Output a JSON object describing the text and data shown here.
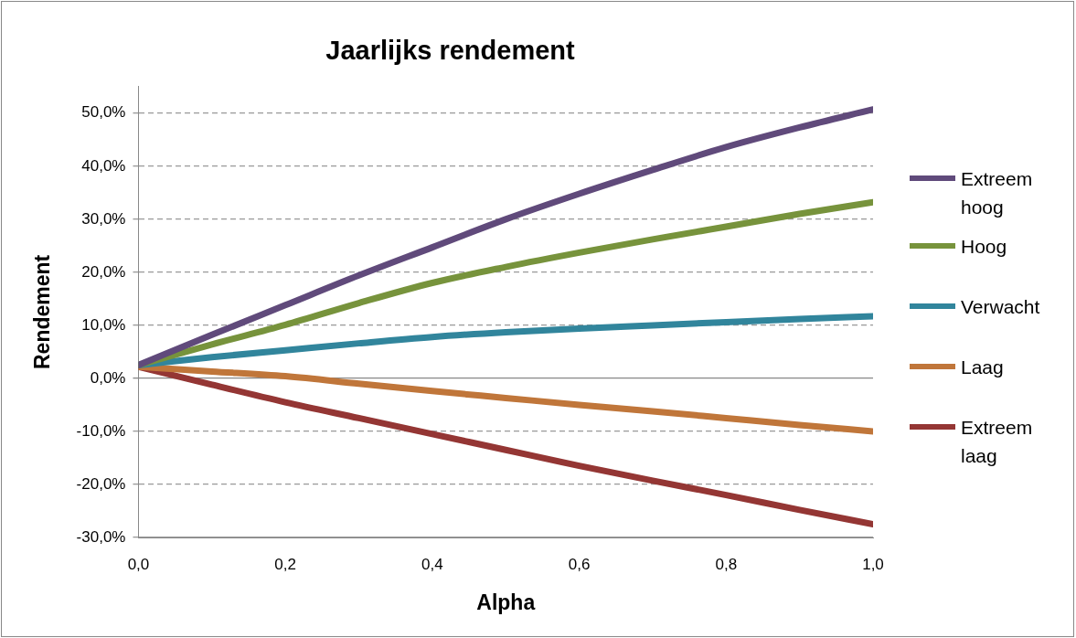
{
  "chart_data": {
    "type": "line",
    "title": "Jaarlijks rendement",
    "xlabel": "Alpha",
    "ylabel": "Rendement",
    "x": [
      0,
      0.1,
      0.2,
      0.3,
      0.4,
      0.5,
      0.6,
      0.7,
      0.8,
      0.9,
      1.0
    ],
    "series": [
      {
        "name": "Extreem hoog",
        "color": "#604a7b",
        "values": [
          2.5,
          8.2,
          13.8,
          19.4,
          24.7,
          30,
          34.8,
          39.3,
          43.6,
          47.3,
          50.7
        ]
      },
      {
        "name": "Hoog",
        "color": "#77933c",
        "values": [
          2.5,
          6.4,
          10.1,
          14.2,
          18,
          21,
          23.7,
          26.2,
          28.6,
          31,
          33.2
        ]
      },
      {
        "name": "Verwacht",
        "color": "#31859c",
        "values": [
          2.5,
          4,
          5.3,
          6.6,
          7.8,
          8.7,
          9.4,
          10,
          10.6,
          11.2,
          11.7
        ]
      },
      {
        "name": "Laag",
        "color": "#c0763a",
        "values": [
          2.2,
          1.3,
          0.4,
          -1,
          -2.4,
          -3.7,
          -5,
          -6.2,
          -7.5,
          -8.8,
          -10
        ]
      },
      {
        "name": "Extreem laag",
        "color": "#943634",
        "values": [
          2.2,
          -1.2,
          -4.5,
          -7.5,
          -10.5,
          -13.5,
          -16.5,
          -19.3,
          -22,
          -24.8,
          -27.5
        ]
      }
    ],
    "xlim": [
      0,
      1
    ],
    "xticks": [
      {
        "value": 0,
        "label": "0,0"
      },
      {
        "value": 0.2,
        "label": "0,2"
      },
      {
        "value": 0.4,
        "label": "0,4"
      },
      {
        "value": 0.6,
        "label": "0,6"
      },
      {
        "value": 0.8,
        "label": "0,8"
      },
      {
        "value": 1,
        "label": "1,0"
      }
    ],
    "ylim": [
      -30,
      55
    ],
    "yticks": [
      {
        "value": -30,
        "label": "-30,0%"
      },
      {
        "value": -20,
        "label": "-20,0%"
      },
      {
        "value": -10,
        "label": "-10,0%"
      },
      {
        "value": 0,
        "label": "0,0%"
      },
      {
        "value": 10,
        "label": "10,0%"
      },
      {
        "value": 20,
        "label": "20,0%"
      },
      {
        "value": 30,
        "label": "30,0%"
      },
      {
        "value": 40,
        "label": "40,0%"
      },
      {
        "value": 50,
        "label": "50,0%"
      }
    ],
    "grid": "y",
    "legend": "right",
    "marker": "none",
    "line_style": "solid"
  }
}
